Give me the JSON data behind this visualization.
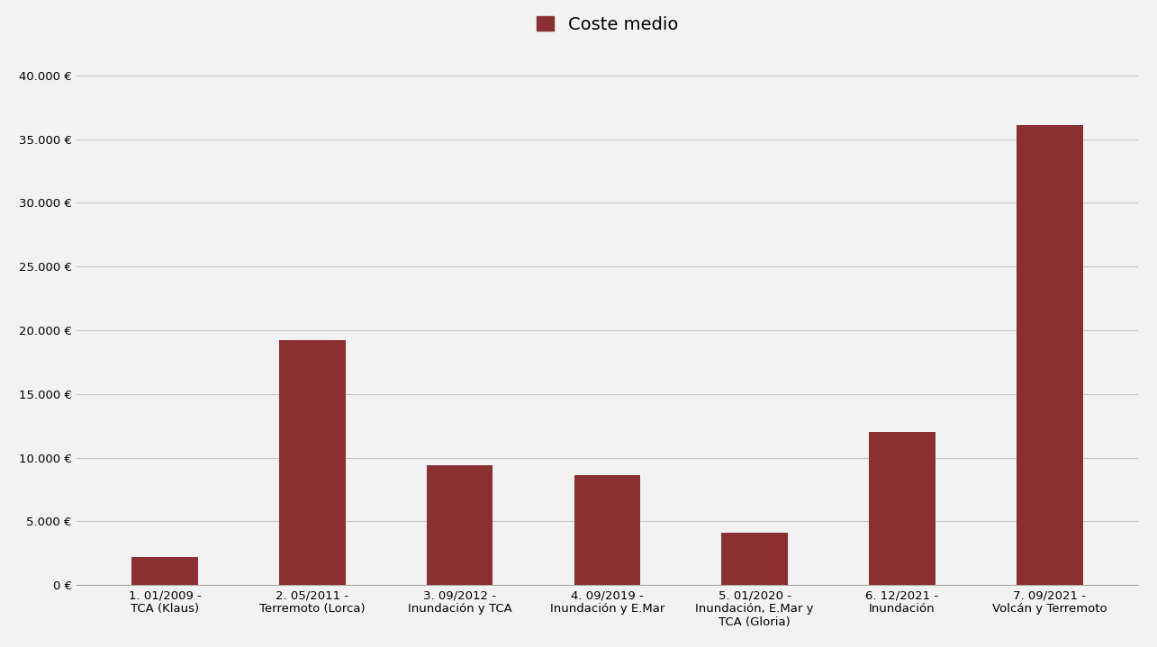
{
  "title": "Coste medio",
  "bar_color": "#8B3030",
  "background_color": "#F2F2F2",
  "plot_area_color": "#F2F2F2",
  "categories": [
    "1. 01/2009 -\nTCA (Klaus)",
    "2. 05/2011 -\nTerremoto (Lorca)",
    "3. 09/2012 -\nInundación y TCA",
    "4. 09/2019 -\nInundación y E.Mar",
    "5. 01/2020 -\nInundación, E.Mar y\nTCA (Gloria)",
    "6. 12/2021 -\nInundación",
    "7. 09/2021 -\nVolcán y Terremoto"
  ],
  "values": [
    2200,
    19200,
    9400,
    8600,
    4100,
    12000,
    36100
  ],
  "ylim": [
    0,
    42000
  ],
  "yticks": [
    0,
    5000,
    10000,
    15000,
    20000,
    25000,
    30000,
    35000,
    40000
  ],
  "legend_label": "Coste medio",
  "grid_color": "#C8C8C8",
  "title_fontsize": 14,
  "tick_fontsize": 9.5,
  "bar_width": 0.45
}
